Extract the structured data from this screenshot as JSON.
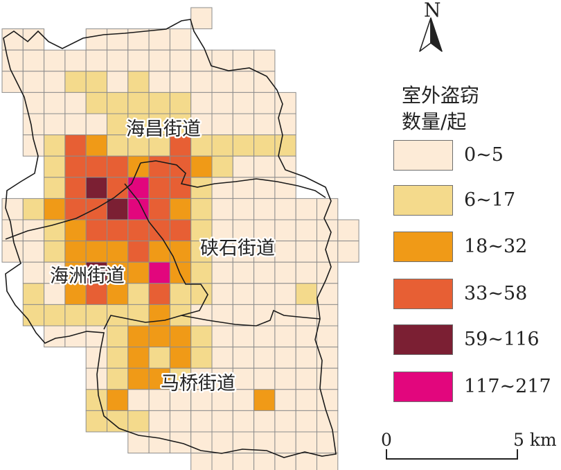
{
  "legend": {
    "title_line1": "室外盗窃",
    "title_line2": "数量/起",
    "classes": [
      {
        "label": "0~5",
        "color": "#fdebd7"
      },
      {
        "label": "6~17",
        "color": "#f4da8c"
      },
      {
        "label": "18~32",
        "color": "#f09a17"
      },
      {
        "label": "33~58",
        "color": "#e75f34"
      },
      {
        "label": "59~116",
        "color": "#7b1f33"
      },
      {
        "label": "117~217",
        "color": "#e2067d"
      }
    ]
  },
  "north_arrow": {
    "letter": "N"
  },
  "scale_bar": {
    "start_label": "0",
    "end_label": "5 km"
  },
  "districts": [
    {
      "name": "海昌街道"
    },
    {
      "name": "硖石街道"
    },
    {
      "name": "海洲街道"
    },
    {
      "name": "马桥街道"
    }
  ],
  "colors": {
    "grid_line": "#8c8c8c",
    "boundary": "#1a1a1a"
  }
}
